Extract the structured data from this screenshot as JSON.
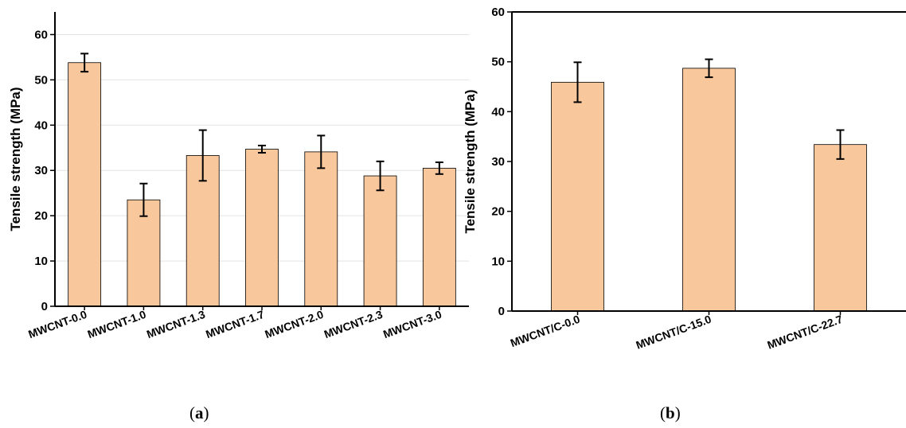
{
  "chart_data": [
    {
      "type": "bar",
      "panel_label": "a",
      "categories": [
        "MWCNT-0.0",
        "MWCNT-1.0",
        "MWCNT-1.3",
        "MWCNT-1.7",
        "MWCNT-2.0",
        "MWCNT-2.3",
        "MWCNT-3.0"
      ],
      "values": [
        53.8,
        23.5,
        33.3,
        34.7,
        34.1,
        28.8,
        30.5
      ],
      "errors": [
        2.0,
        3.6,
        5.6,
        0.8,
        3.6,
        3.2,
        1.3
      ],
      "title": "",
      "xlabel": "",
      "ylabel": "Tensile strength (MPa)",
      "ylim": [
        0,
        65
      ],
      "yticks": [
        0,
        10,
        20,
        30,
        40,
        50,
        60
      ],
      "grid": "horizontal",
      "legend": "none",
      "bar_color": "#f9c79c",
      "bar_edge_color": "#000000"
    },
    {
      "type": "bar",
      "panel_label": "b",
      "categories": [
        "MWCNT/C-0.0",
        "MWCNT/C-15.0",
        "MWCNT/C-22.7"
      ],
      "values": [
        45.9,
        48.7,
        33.4
      ],
      "errors": [
        4.0,
        1.8,
        2.9
      ],
      "title": "",
      "xlabel": "",
      "ylabel": "Tensile strength (MPa)",
      "ylim": [
        0,
        60
      ],
      "yticks": [
        0,
        10,
        20,
        30,
        40,
        50,
        60
      ],
      "grid": "none",
      "legend": "none",
      "bar_color": "#f9c79c",
      "bar_edge_color": "#000000"
    }
  ]
}
